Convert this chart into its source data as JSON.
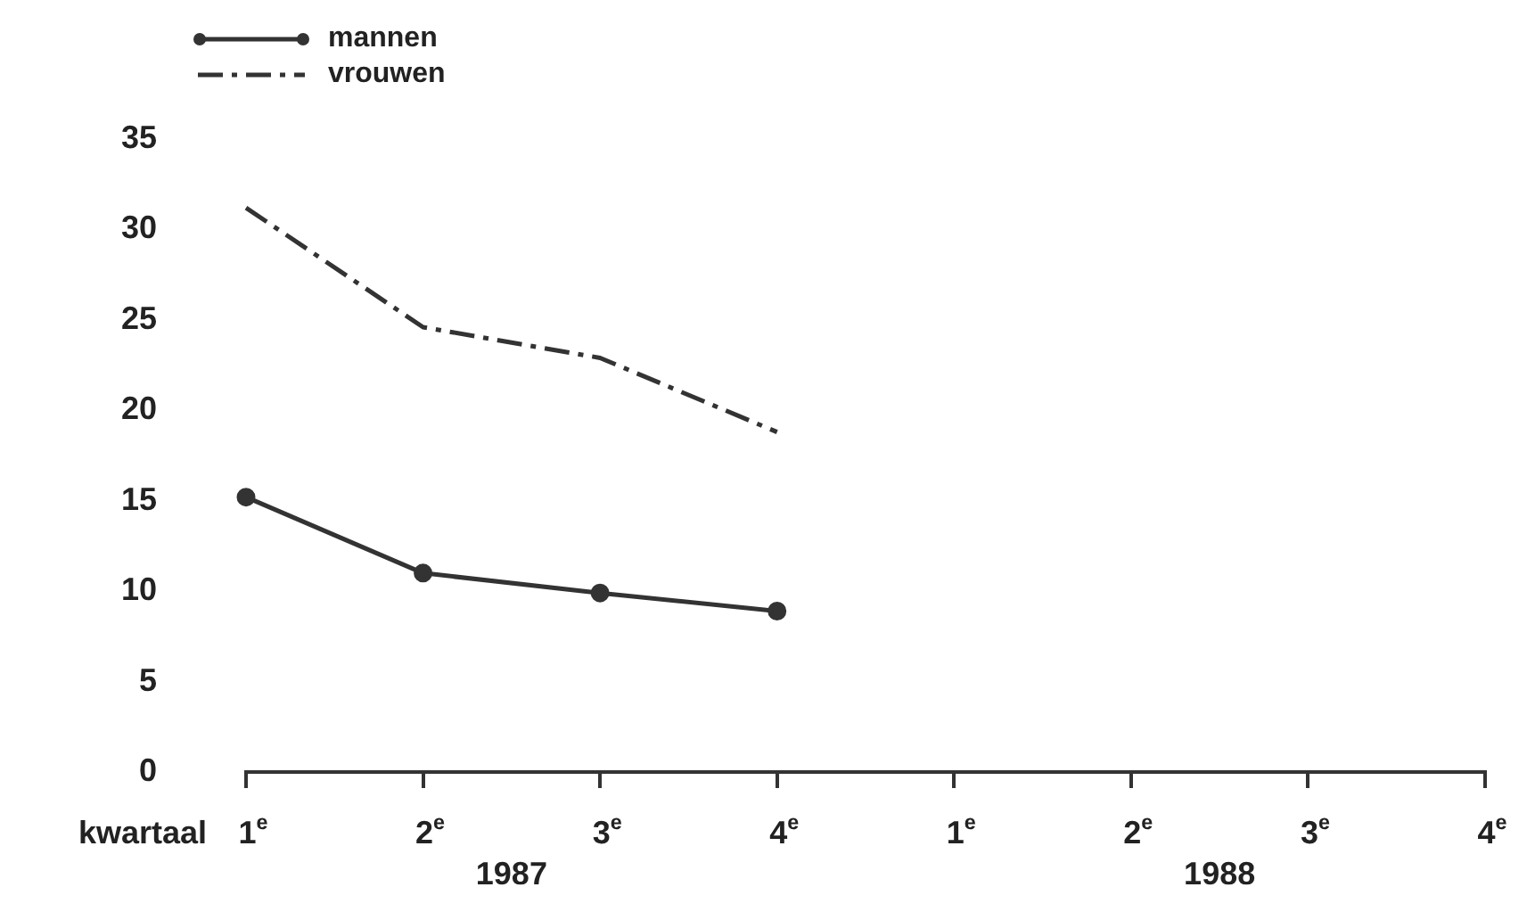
{
  "chart_data": {
    "type": "line",
    "xlabel": "kwartaal",
    "categories": [
      "1$^{e}$",
      "2$^{e}$",
      "3$^{e}$",
      "4$^{e}$",
      "1$^{e}$",
      "2$^{e}$",
      "3$^{e}$",
      "4$^{e}$"
    ],
    "series": [
      {
        "name": "mannen",
        "color": "#333333",
        "marker": "circle",
        "line_style": "solid",
        "values": [
          15.2,
          11,
          9.9,
          8.9,
          null,
          null,
          null,
          null
        ]
      },
      {
        "name": "vrouwen",
        "color": "#333333",
        "marker": "none",
        "line_style": "dashed",
        "values": [
          31.2,
          24.6,
          22.9,
          18.8,
          null,
          null,
          null,
          null
        ]
      }
    ],
    "ylim": [
      0,
      35
    ],
    "yticks": [
      0,
      5,
      10,
      15,
      20,
      25,
      30,
      35
    ],
    "grid": false,
    "legend": "top left",
    "annotations": [
      "1987",
      "1988"
    ]
  }
}
